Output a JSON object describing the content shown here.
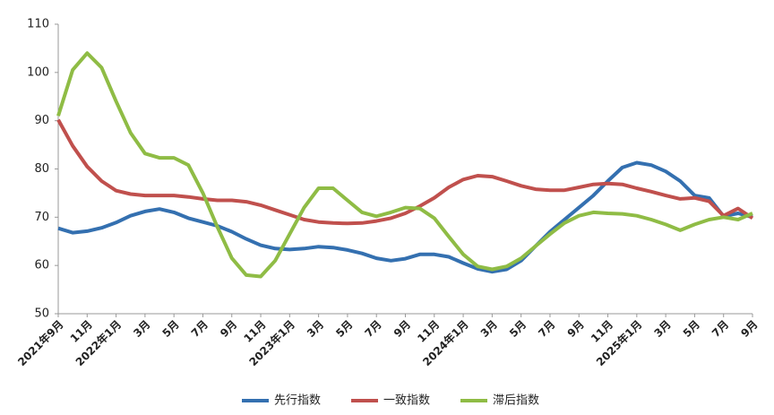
{
  "chart_data": {
    "type": "line",
    "categories": [
      "2021年9月",
      null,
      "11月",
      null,
      "2022年1月",
      null,
      "3月",
      null,
      "5月",
      null,
      "7月",
      null,
      "9月",
      null,
      "11月",
      null,
      "2023年1月",
      null,
      "3月",
      null,
      "5月",
      null,
      "7月",
      null,
      "9月",
      null,
      "11月",
      null,
      "2024年1月",
      null,
      "3月",
      null,
      "5月",
      null,
      "7月",
      null,
      "9月",
      null,
      "11月",
      null,
      "2025年1月",
      null,
      "3月",
      null,
      "5月",
      null,
      "7月",
      null,
      "9月"
    ],
    "series": [
      {
        "name": "先行指数",
        "color": "#3470b0",
        "values": [
          67.7,
          66.8,
          67.1,
          67.8,
          68.9,
          70.3,
          71.2,
          71.7,
          71.0,
          69.8,
          69.0,
          68.2,
          67.0,
          65.5,
          64.2,
          63.5,
          63.3,
          63.5,
          63.9,
          63.7,
          63.2,
          62.5,
          61.5,
          61.0,
          61.4,
          62.3,
          62.3,
          61.8,
          60.5,
          59.3,
          58.7,
          59.2,
          61.0,
          64.0,
          67.0,
          69.5,
          72.0,
          74.5,
          77.5,
          80.3,
          81.3,
          80.8,
          79.5,
          77.5,
          74.5,
          74.0,
          70.2,
          70.8,
          70.0
        ]
      },
      {
        "name": "一致指数",
        "color": "#c0504d",
        "values": [
          90.2,
          84.8,
          80.5,
          77.5,
          75.5,
          74.8,
          74.5,
          74.5,
          74.5,
          74.2,
          73.8,
          73.5,
          73.5,
          73.2,
          72.5,
          71.5,
          70.5,
          69.5,
          69.0,
          68.8,
          68.7,
          68.8,
          69.2,
          69.8,
          70.8,
          72.3,
          74.0,
          76.2,
          77.8,
          78.6,
          78.4,
          77.5,
          76.5,
          75.8,
          75.6,
          75.6,
          76.2,
          76.8,
          77.0,
          76.8,
          76.0,
          75.3,
          74.5,
          73.8,
          74.0,
          73.3,
          70.3,
          71.8,
          69.8
        ]
      },
      {
        "name": "滞后指数",
        "color": "#8fbc45",
        "values": [
          91,
          100.5,
          104,
          101,
          94,
          87.5,
          83.2,
          82.3,
          82.3,
          80.8,
          75,
          68,
          61.5,
          58,
          57.7,
          61,
          66.5,
          72,
          76,
          76,
          73.5,
          71,
          70.2,
          71,
          72,
          71.8,
          69.8,
          66,
          62.3,
          59.8,
          59.2,
          59.8,
          61.5,
          64,
          66.5,
          68.8,
          70.3,
          71,
          70.8,
          70.7,
          70.3,
          69.5,
          68.5,
          67.3,
          68.5,
          69.5,
          70,
          69.5,
          70.8
        ]
      }
    ],
    "ylim": [
      50,
      110
    ],
    "yticks": [
      50,
      60,
      70,
      80,
      90,
      100,
      110
    ],
    "grid": false,
    "legend": "bottom"
  }
}
